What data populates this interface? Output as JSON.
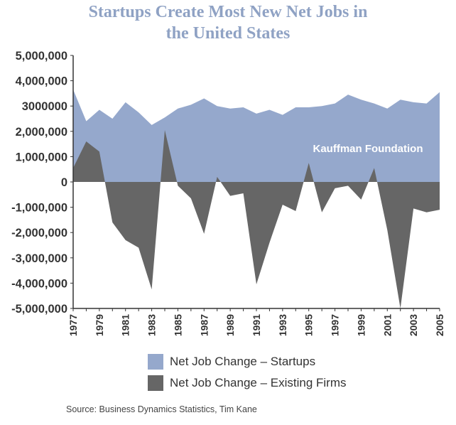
{
  "title_lines": [
    "Startups Create Most New Net Jobs in",
    "the United States"
  ],
  "annotation": "Kauffman Foundation",
  "source": "Source: Business Dynamics Statistics, Tim Kane",
  "colors": {
    "startups": "#95a8cc",
    "existing": "#666666",
    "plot_bg": "#ffffff",
    "title": "#8fa2c4"
  },
  "chart_data": {
    "type": "area",
    "title": "Startups Create Most New Net Jobs in the United States",
    "xlabel": "",
    "ylabel": "",
    "ylim": [
      -5000000,
      5000000
    ],
    "yticks": [
      5000000,
      4000000,
      3000000,
      2000000,
      1000000,
      0,
      -1000000,
      -2000000,
      -3000000,
      -4000000,
      -5000000
    ],
    "ytick_labels": [
      "5,000,000",
      "4,000,000",
      "3000000",
      "2,000,000",
      "1,000,000",
      "0",
      "-1,000,000",
      "-2,000,000",
      "-3,000,000",
      "-4,000,000",
      "-5,000,000"
    ],
    "xlim": [
      1977,
      2005
    ],
    "xtick_labels": [
      "1977",
      "1979",
      "1981",
      "1983",
      "1985",
      "1987",
      "1989",
      "1991",
      "1993",
      "1995",
      "1997",
      "1999",
      "2001",
      "2003",
      "2005"
    ],
    "grid": false,
    "legend": "bottom",
    "x": [
      1977,
      1978,
      1979,
      1980,
      1981,
      1982,
      1983,
      1984,
      1985,
      1986,
      1987,
      1988,
      1989,
      1990,
      1991,
      1992,
      1993,
      1994,
      1995,
      1996,
      1997,
      1998,
      1999,
      2000,
      2001,
      2002,
      2003,
      2004,
      2005
    ],
    "series": [
      {
        "name": "Net Job Change – Startups",
        "values": [
          3650000,
          2400000,
          2850000,
          2500000,
          3150000,
          2750000,
          2250000,
          2550000,
          2900000,
          3050000,
          3300000,
          3000000,
          2900000,
          2950000,
          2700000,
          2850000,
          2650000,
          2950000,
          2950000,
          3000000,
          3100000,
          3450000,
          3250000,
          3100000,
          2900000,
          3250000,
          3150000,
          3100000,
          3550000
        ]
      },
      {
        "name": "Net Job Change – Existing Firms",
        "values": [
          550000,
          1600000,
          1200000,
          -1600000,
          -2300000,
          -2600000,
          -4250000,
          2050000,
          -150000,
          -650000,
          -2050000,
          200000,
          -550000,
          -450000,
          -4050000,
          -2400000,
          -900000,
          -1150000,
          750000,
          -1200000,
          -250000,
          -150000,
          -700000,
          550000,
          -1900000,
          -5000000,
          -1050000,
          -1200000,
          -1100000
        ]
      }
    ]
  },
  "legend_items": [
    {
      "label": "Net Job Change – Startups",
      "color": "#95a8cc"
    },
    {
      "label": "Net Job Change – Existing Firms",
      "color": "#666666"
    }
  ]
}
